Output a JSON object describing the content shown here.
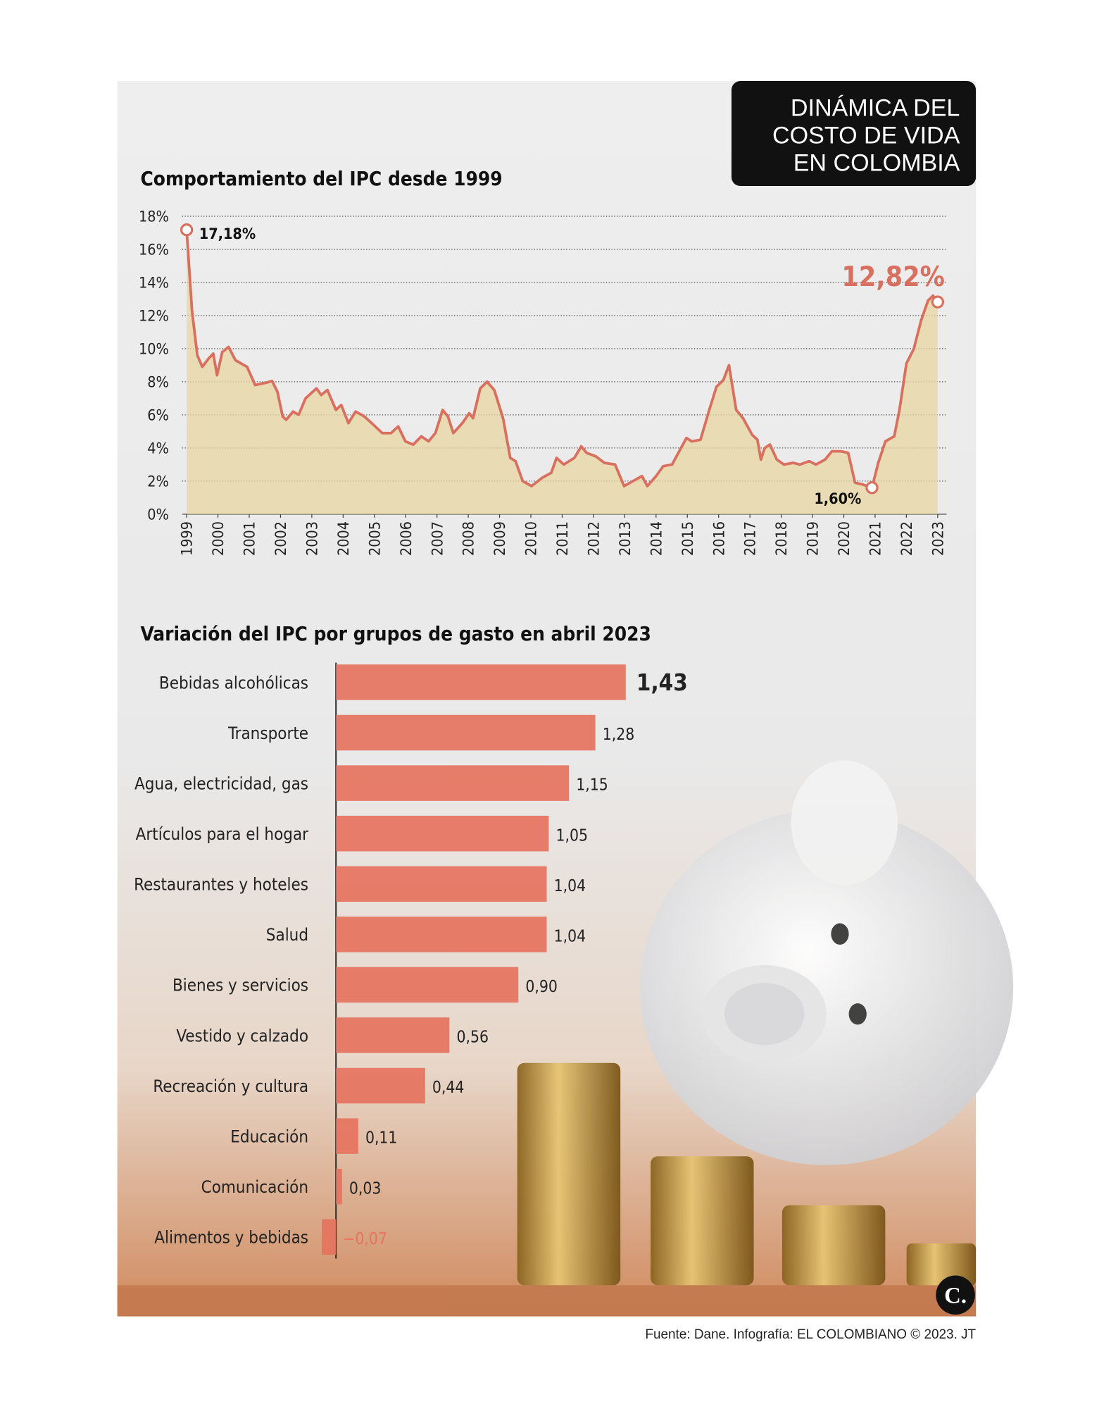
{
  "header": {
    "title_lines": [
      "DINÁMICA DEL",
      "COSTO DE VIDA",
      "EN COLOMBIA"
    ]
  },
  "source": "Fuente: Dane. Infografía: EL COLOMBIANO © 2023. JT",
  "logo": "C.",
  "chart_data": [
    {
      "type": "line",
      "title": "Comportamiento del IPC desde 1999",
      "color": "#d9705f",
      "fill": "#e8d5a0",
      "x": [
        1999,
        1999.17,
        1999.34,
        1999.5,
        1999.7,
        1999.85,
        1999.97,
        2000.14,
        2000.34,
        2000.56,
        2000.93,
        2001.19,
        2001.56,
        2001.73,
        2001.9,
        2002.07,
        2002.18,
        2002.4,
        2002.58,
        2002.8,
        2003.15,
        2003.3,
        2003.5,
        2003.77,
        2003.94,
        2004.17,
        2004.4,
        2004.68,
        2004.97,
        2005.25,
        2005.53,
        2005.76,
        2005.99,
        2006.24,
        2006.5,
        2006.73,
        2006.95,
        2007.18,
        2007.35,
        2007.52,
        2007.81,
        2008.03,
        2008.15,
        2008.38,
        2008.6,
        2008.83,
        2009.11,
        2009.34,
        2009.51,
        2009.74,
        2010.02,
        2010.36,
        2010.65,
        2010.82,
        2011.05,
        2011.39,
        2011.61,
        2011.78,
        2012.07,
        2012.35,
        2012.69,
        2012.98,
        2013.26,
        2013.55,
        2013.72,
        2014.0,
        2014.23,
        2014.51,
        2014.74,
        2014.97,
        2015.14,
        2015.42,
        2015.7,
        2015.93,
        2016.15,
        2016.33,
        2016.56,
        2016.78,
        2017.07,
        2017.24,
        2017.35,
        2017.47,
        2017.64,
        2017.86,
        2018.09,
        2018.38,
        2018.6,
        2018.89,
        2019.11,
        2019.4,
        2019.62,
        2019.91,
        2020.14,
        2020.36,
        2020.59,
        2020.9,
        2021.1,
        2021.33,
        2021.61,
        2021.78,
        2022.0,
        2022.24,
        2022.47,
        2022.69,
        2022.85,
        2023
      ],
      "values": [
        17.18,
        12.3,
        9.6,
        8.9,
        9.4,
        9.7,
        8.4,
        9.8,
        10.1,
        9.3,
        8.9,
        7.8,
        7.95,
        8.05,
        7.4,
        5.9,
        5.7,
        6.2,
        6.0,
        7.0,
        7.6,
        7.2,
        7.5,
        6.3,
        6.6,
        5.5,
        6.2,
        5.9,
        5.4,
        4.9,
        4.9,
        5.3,
        4.4,
        4.2,
        4.7,
        4.4,
        4.9,
        6.3,
        5.9,
        4.9,
        5.5,
        6.1,
        5.8,
        7.6,
        8.0,
        7.5,
        5.8,
        3.4,
        3.2,
        2.0,
        1.7,
        2.2,
        2.5,
        3.4,
        3.0,
        3.4,
        4.1,
        3.7,
        3.5,
        3.1,
        3.0,
        1.7,
        2.0,
        2.3,
        1.7,
        2.3,
        2.9,
        3.0,
        3.8,
        4.6,
        4.4,
        4.5,
        6.3,
        7.7,
        8.1,
        9.0,
        6.3,
        5.8,
        4.8,
        4.5,
        3.3,
        4.0,
        4.2,
        3.3,
        3.0,
        3.1,
        3.0,
        3.2,
        3.0,
        3.3,
        3.8,
        3.8,
        3.7,
        1.9,
        1.8,
        1.6,
        3.1,
        4.4,
        4.7,
        6.3,
        9.1,
        10.0,
        11.7,
        12.9,
        13.2,
        12.82
      ],
      "value_labels": [
        "17,18%",
        null,
        null,
        null,
        null,
        null,
        null,
        null,
        null,
        null,
        null,
        null,
        null,
        null,
        null,
        null,
        null,
        null,
        null,
        null,
        null,
        null,
        null,
        null,
        null,
        null,
        null,
        null,
        null,
        null,
        null,
        null,
        null,
        null,
        null,
        null,
        null,
        null,
        null,
        null,
        null,
        null,
        null,
        null,
        null,
        null,
        null,
        null,
        null,
        null,
        null,
        null,
        null,
        null,
        null,
        null,
        null,
        null,
        null,
        null,
        null,
        null,
        null,
        null,
        null,
        null,
        null,
        null,
        null,
        null,
        null,
        null,
        null,
        null,
        null,
        null,
        null,
        null,
        null,
        null,
        null,
        null,
        null,
        null,
        null,
        null,
        null,
        null,
        null,
        null,
        null,
        null,
        null,
        null,
        null,
        "1,60%",
        null,
        null,
        null,
        null,
        null,
        null,
        null,
        null,
        null,
        "12,82%"
      ],
      "xlim": [
        1999,
        2023
      ],
      "xticks": [
        1999,
        2000,
        2001,
        2002,
        2003,
        2004,
        2005,
        2006,
        2007,
        2008,
        2009,
        2010,
        2011,
        2012,
        2013,
        2014,
        2015,
        2016,
        2017,
        2018,
        2019,
        2020,
        2021,
        2022,
        2023
      ],
      "ylim": [
        0,
        18
      ],
      "yticks": [
        {
          "value": 0,
          "label": "0%"
        },
        {
          "value": 2,
          "label": "2%"
        },
        {
          "value": 4,
          "label": "4%"
        },
        {
          "value": 6,
          "label": "6%"
        },
        {
          "value": 8,
          "label": "8%"
        },
        {
          "value": 10,
          "label": "10%"
        },
        {
          "value": 12,
          "label": "12%"
        },
        {
          "value": 14,
          "label": "14%"
        },
        {
          "value": 16,
          "label": "16%"
        },
        {
          "value": 18,
          "label": "18%"
        }
      ],
      "grid": true
    },
    {
      "type": "hbar",
      "title": "Variación del IPC por grupos de gasto en abril 2023",
      "color": "#e5735e",
      "negative_color": "#e5735e",
      "categories": [
        "Bebidas alcohólicas",
        "Transporte",
        "Agua, electricidad, gas",
        "Artículos para el hogar",
        "Restaurantes y hoteles",
        "Salud",
        "Bienes y servicios",
        "Vestido y calzado",
        "Recreación y cultura",
        "Educación",
        "Comunicación",
        "Alimentos y bebidas"
      ],
      "values": [
        1.43,
        1.28,
        1.15,
        1.05,
        1.04,
        1.04,
        0.9,
        0.56,
        0.44,
        0.11,
        0.03,
        -0.07
      ],
      "value_labels": [
        "1,43",
        "1,28",
        "1,15",
        "1,05",
        "1,04",
        "1,04",
        "0,90",
        "0,56",
        "0,44",
        "0,11",
        "0,03",
        "−0,07"
      ]
    }
  ]
}
